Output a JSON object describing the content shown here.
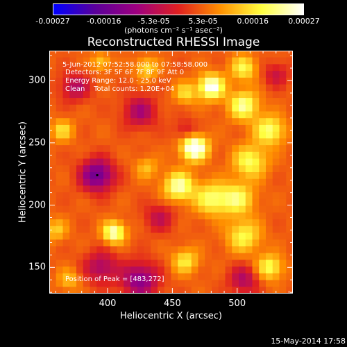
{
  "chart_data": {
    "type": "heatmap",
    "title": "Reconstructed RHESSI Image",
    "xlabel": "Heliocentric X (arcsec)",
    "ylabel": "Heliocentric Y (arcsec)",
    "xlim": [
      355,
      543
    ],
    "ylim": [
      129,
      324
    ],
    "xticks": [
      {
        "value": 400,
        "label": "400"
      },
      {
        "value": 450,
        "label": "450"
      },
      {
        "value": 500,
        "label": "500"
      }
    ],
    "yticks": [
      {
        "value": 150,
        "label": "150"
      },
      {
        "value": 200,
        "label": "200"
      },
      {
        "value": 250,
        "label": "250"
      },
      {
        "value": 300,
        "label": "300"
      }
    ],
    "colorbar": {
      "min": -0.00027,
      "max": 0.00027,
      "colormap": [
        "#0000ff",
        "#5a009a",
        "#9e0080",
        "#e02020",
        "#ff9000",
        "#ffff40",
        "#ffffff"
      ],
      "tick_labels": [
        {
          "value": -0.00027,
          "label": "-0.00027"
        },
        {
          "value": -0.00016,
          "label": "-0.00016"
        },
        {
          "value": -5.3e-05,
          "label": "-5.3e-05"
        },
        {
          "value": 5.3e-05,
          "label": "5.3e-05"
        },
        {
          "value": 0.00016,
          "label": "0.00016"
        },
        {
          "value": 0.00027,
          "label": "0.00027"
        }
      ],
      "units": "(photons cm⁻² s⁻¹ asec⁻²)"
    },
    "annotations": {
      "time_range": "5-Jun-2012 07:52:58.000 to 07:58:58.000",
      "detectors": "Detectors: 3F 5F 6F 7F 8F 9F Att 0",
      "energy_range": "Energy Range: 12.0 - 25.0 keV",
      "method": "Clean    Total counts: 1.20E+04",
      "peak": "Position of Peak = [483,272]"
    },
    "peak_position": [
      483,
      272
    ],
    "grid_size": 36,
    "hot_sources": [
      {
        "x": 467,
        "y": 246,
        "amp": 1.0,
        "r": 7
      },
      {
        "x": 480,
        "y": 295,
        "amp": 0.85,
        "r": 7
      },
      {
        "x": 405,
        "y": 178,
        "amp": 0.75,
        "r": 6
      },
      {
        "x": 455,
        "y": 215,
        "amp": 0.7,
        "r": 8
      },
      {
        "x": 480,
        "y": 205,
        "amp": 0.55,
        "r": 9
      },
      {
        "x": 505,
        "y": 280,
        "amp": 0.65,
        "r": 8
      },
      {
        "x": 525,
        "y": 260,
        "amp": 0.6,
        "r": 8
      },
      {
        "x": 510,
        "y": 235,
        "amp": 0.55,
        "r": 9
      },
      {
        "x": 500,
        "y": 205,
        "amp": 0.55,
        "r": 9
      },
      {
        "x": 505,
        "y": 175,
        "amp": 0.5,
        "r": 9
      },
      {
        "x": 525,
        "y": 150,
        "amp": 0.55,
        "r": 7
      },
      {
        "x": 460,
        "y": 155,
        "amp": 0.45,
        "r": 7
      },
      {
        "x": 505,
        "y": 310,
        "amp": 0.5,
        "r": 7
      },
      {
        "x": 430,
        "y": 310,
        "amp": 0.4,
        "r": 6
      },
      {
        "x": 395,
        "y": 315,
        "amp": 0.35,
        "r": 5
      },
      {
        "x": 365,
        "y": 260,
        "amp": 0.4,
        "r": 6
      },
      {
        "x": 360,
        "y": 180,
        "amp": 0.35,
        "r": 6
      },
      {
        "x": 460,
        "y": 290,
        "amp": 0.4,
        "r": 6
      },
      {
        "x": 430,
        "y": 230,
        "amp": 0.3,
        "r": 6
      },
      {
        "x": 370,
        "y": 140,
        "amp": 0.3,
        "r": 6
      }
    ],
    "cold_sources": [
      {
        "x": 392,
        "y": 224,
        "amp": 1.0,
        "r": 9
      },
      {
        "x": 425,
        "y": 140,
        "amp": 0.8,
        "r": 10
      },
      {
        "x": 425,
        "y": 275,
        "amp": 0.6,
        "r": 9
      },
      {
        "x": 375,
        "y": 295,
        "amp": 0.55,
        "r": 8
      },
      {
        "x": 505,
        "y": 140,
        "amp": 0.55,
        "r": 8
      },
      {
        "x": 395,
        "y": 150,
        "amp": 0.6,
        "r": 9
      },
      {
        "x": 530,
        "y": 305,
        "amp": 0.4,
        "r": 7
      },
      {
        "x": 440,
        "y": 190,
        "amp": 0.45,
        "r": 8
      },
      {
        "x": 460,
        "y": 260,
        "amp": 0.35,
        "r": 6
      }
    ]
  },
  "footer": {
    "timestamp": "15-May-2014 17:58"
  }
}
